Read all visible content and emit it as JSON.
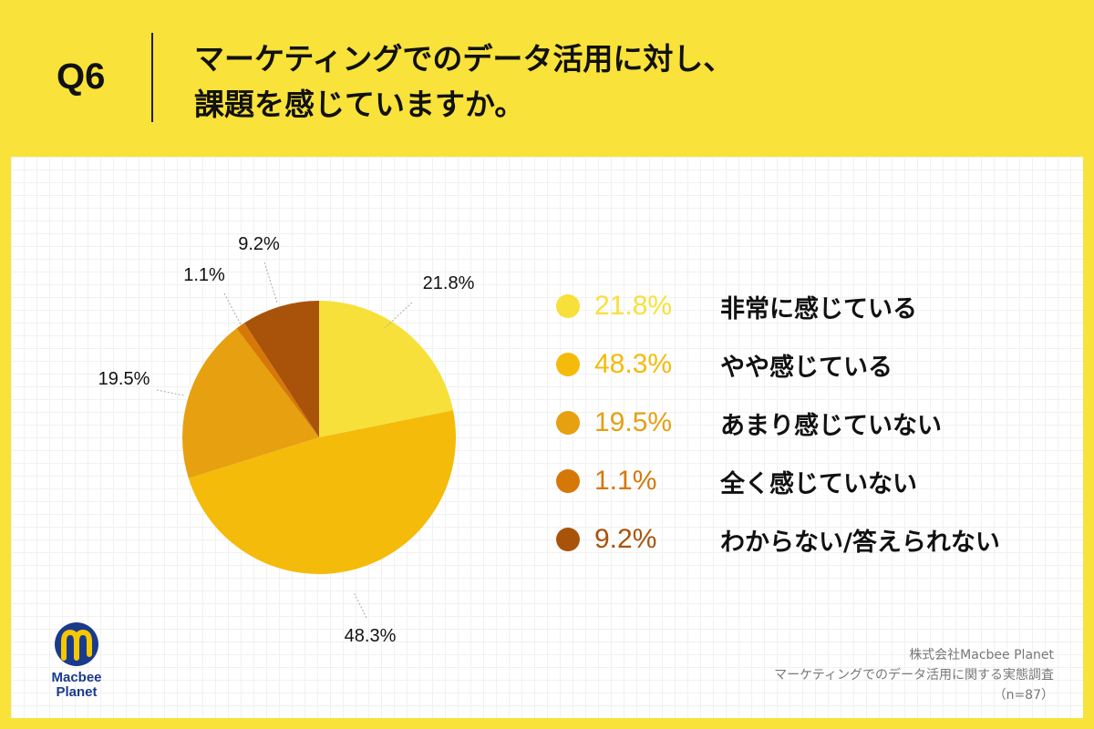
{
  "header": {
    "question": "Q6",
    "title_line1": "マーケティングでのデータ活用に対し、",
    "title_line2": "課題を感じていますか。"
  },
  "chart_data": {
    "type": "pie",
    "slices": [
      {
        "label": "非常に感じている",
        "value": 21.8,
        "display": "21.8%",
        "color": "#f8e03a"
      },
      {
        "label": "やや感じている",
        "value": 48.3,
        "display": "48.3%",
        "color": "#f5bb0a"
      },
      {
        "label": "あまり感じていない",
        "value": 19.5,
        "display": "19.5%",
        "color": "#e6a010"
      },
      {
        "label": "全く感じていない",
        "value": 1.1,
        "display": "1.1%",
        "color": "#d67808"
      },
      {
        "label": "わからない/答えられない",
        "value": 9.2,
        "display": "9.2%",
        "color": "#a9530a"
      }
    ]
  },
  "footer": {
    "logo_line1": "Macbee",
    "logo_line2": "Planet",
    "credit_line1": "株式会社Macbee Planet",
    "credit_line2": "マーケティングでのデータ活用に関する実態調査",
    "credit_line3": "（n=87）"
  },
  "colors": {
    "background": "#f9e23a",
    "logo_blue": "#1a3a8c",
    "logo_yellow": "#f6c800"
  }
}
